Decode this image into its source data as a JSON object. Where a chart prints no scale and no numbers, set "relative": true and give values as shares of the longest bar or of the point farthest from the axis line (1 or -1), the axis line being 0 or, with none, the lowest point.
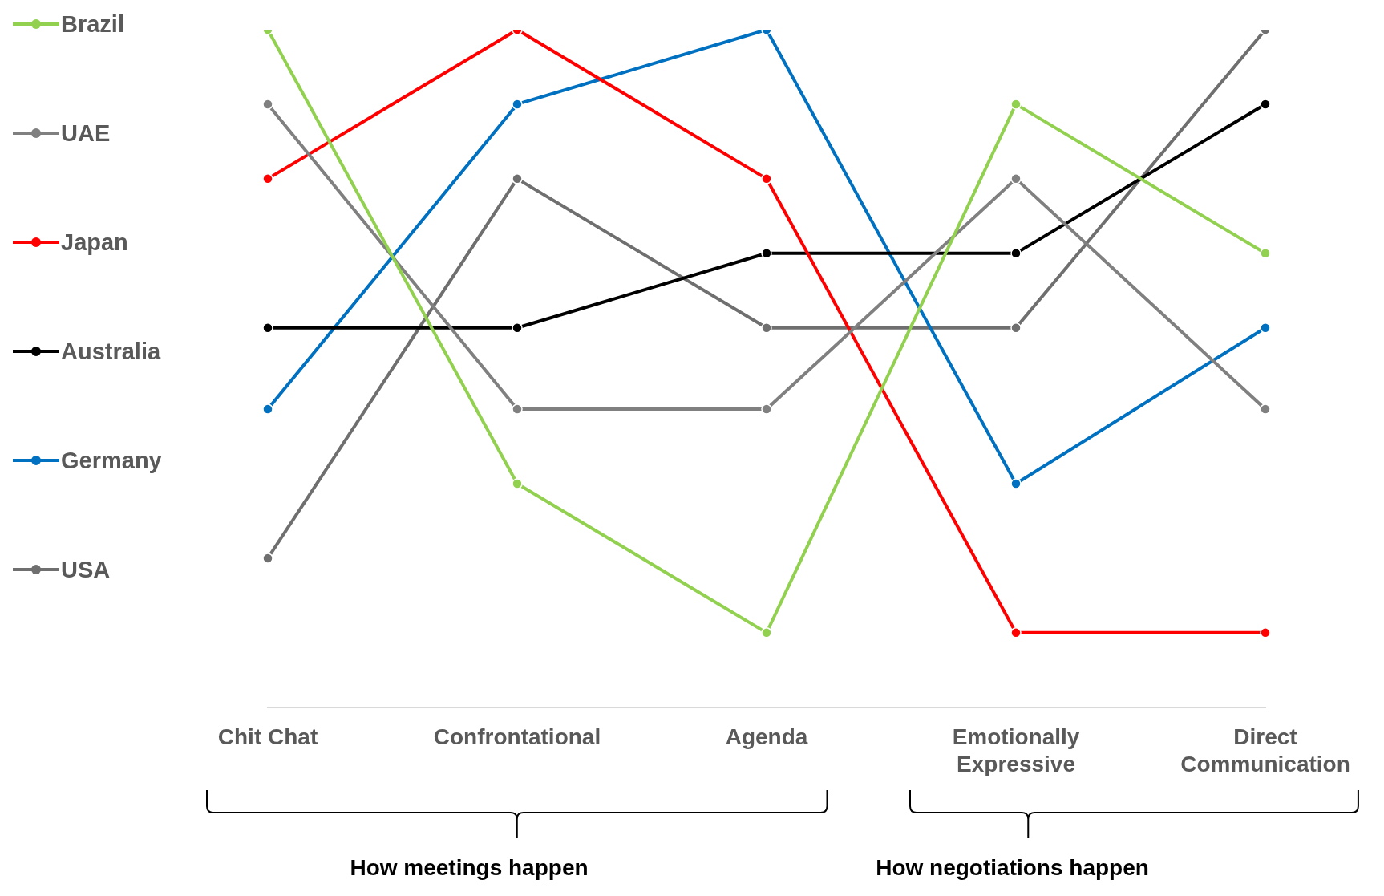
{
  "chart_data": {
    "type": "line",
    "relative": true,
    "categories": [
      "Chit Chat",
      "Confrontational",
      "Agenda",
      "Emotionally Expressive",
      "Direct Communication"
    ],
    "series": [
      {
        "name": "Brazil",
        "color": "#92d050",
        "values": [
          1,
          0.33,
          0.11,
          0.89,
          0.67
        ]
      },
      {
        "name": "UAE",
        "color": "#808080",
        "values": [
          0.89,
          0.44,
          0.44,
          0.78,
          0.44
        ]
      },
      {
        "name": "Japan",
        "color": "#ff0000",
        "values": [
          0.78,
          1,
          0.78,
          0.11,
          0.11
        ]
      },
      {
        "name": "Australia",
        "color": "#000000",
        "values": [
          0.56,
          0.56,
          0.67,
          0.67,
          0.89
        ]
      },
      {
        "name": "Germany",
        "color": "#0070c0",
        "values": [
          0.44,
          0.89,
          1,
          0.33,
          0.56
        ]
      },
      {
        "name": "USA",
        "color": "#6f6f6f",
        "values": [
          0.22,
          0.78,
          0.56,
          0.56,
          1
        ]
      }
    ],
    "annotations": [
      "How meetings happen",
      "How negotiations happen"
    ],
    "legend": "left",
    "grid": false,
    "marker": "circle",
    "line_style": "solid"
  }
}
